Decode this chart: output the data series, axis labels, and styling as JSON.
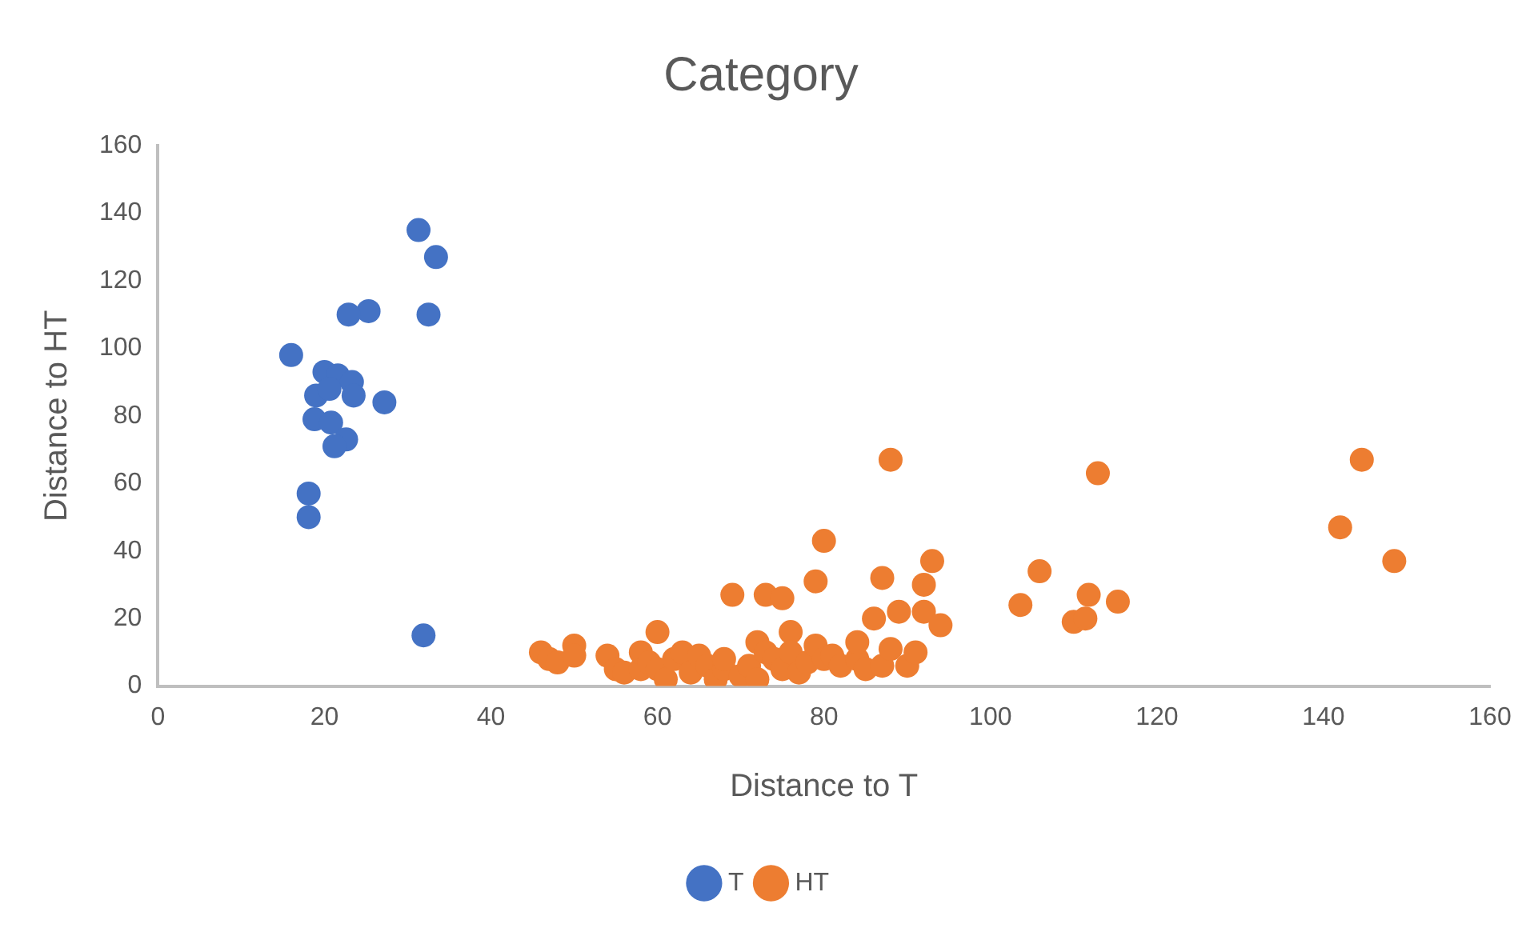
{
  "chart_data": {
    "type": "scatter",
    "title": "Category",
    "xlabel": "Distance to T",
    "ylabel": "Distance to HT",
    "xlim": [
      0,
      160
    ],
    "xticks": [
      0,
      20,
      40,
      60,
      80,
      100,
      120,
      140,
      160
    ],
    "ylim": [
      0,
      160
    ],
    "yticks": [
      0,
      20,
      40,
      60,
      80,
      100,
      120,
      140,
      160
    ],
    "grid": false,
    "legend": "bottom",
    "marker": "circle",
    "series": [
      {
        "name": "T",
        "color": "#4472c4",
        "x": [
          16,
          31.3,
          33.4,
          25.3,
          22.9,
          32.5,
          20,
          21.6,
          23.3,
          19,
          20.6,
          23.5,
          27.2,
          18.8,
          20.8,
          22.6,
          21.2,
          18.1,
          18.1,
          31.9
        ],
        "values": [
          98,
          135,
          127,
          111,
          110,
          110,
          93,
          92,
          90,
          86,
          88,
          86,
          84,
          79,
          78,
          73,
          71,
          57,
          50,
          15
        ]
      },
      {
        "name": "HT",
        "color": "#ed7d31",
        "x": [
          46,
          47,
          48,
          50,
          50,
          54,
          55,
          56,
          58,
          58,
          59,
          60,
          60,
          61,
          62,
          63,
          64,
          65,
          66,
          67,
          68,
          68,
          69,
          70,
          71,
          72,
          72,
          73,
          73,
          74,
          75,
          75,
          76,
          76,
          77,
          78,
          79,
          79,
          80,
          80,
          81,
          82,
          84,
          84,
          85,
          86,
          87,
          87,
          88,
          88,
          89,
          90,
          91,
          92,
          92,
          93,
          94,
          103.6,
          105.9,
          110,
          111.4,
          111.8,
          112.9,
          115.3,
          142,
          144.6,
          148.5
        ],
        "values": [
          10,
          8,
          7,
          12,
          9,
          9,
          5,
          4,
          5,
          10,
          7,
          16,
          5,
          2,
          8,
          10,
          4,
          9,
          6,
          2,
          5,
          8,
          27,
          3,
          6,
          2,
          13,
          10,
          27,
          8,
          5,
          26,
          16,
          10,
          4,
          7,
          12,
          31,
          43,
          8,
          9,
          6,
          8,
          13,
          5,
          20,
          6,
          32,
          67,
          11,
          22,
          6,
          10,
          22,
          30,
          37,
          18,
          24,
          34,
          19,
          20,
          27,
          63,
          25,
          47,
          67,
          37
        ]
      }
    ]
  }
}
